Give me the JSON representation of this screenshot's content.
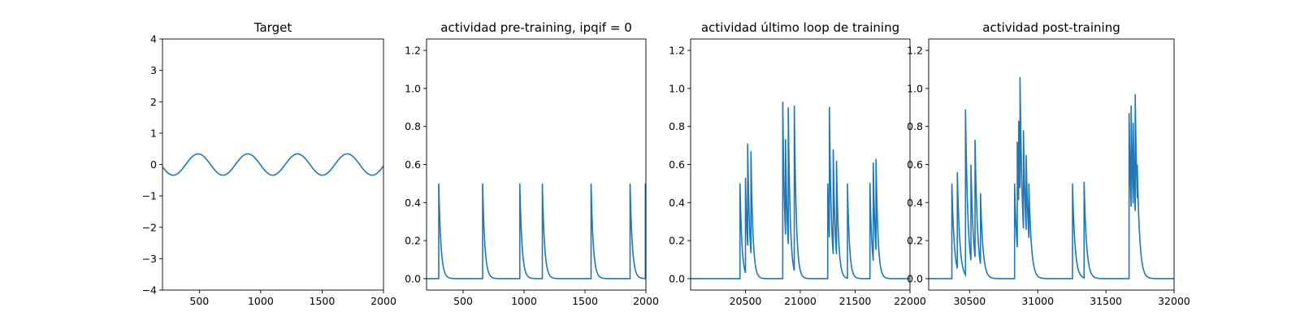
{
  "chart_data": [
    {
      "type": "line",
      "title": "Target",
      "xlim": [
        200,
        2000
      ],
      "ylim": [
        -4,
        4
      ],
      "xticks": [
        500,
        1000,
        1500,
        2000
      ],
      "yticks": [
        -4,
        -3,
        -2,
        -1,
        0,
        1,
        2,
        3,
        4
      ],
      "color": "#1f77b4",
      "series": [
        {
          "function": "sine",
          "amplitude": 0.34,
          "period": 405,
          "x_start": 200,
          "x_end": 2000,
          "x_at_first_peak": 490
        }
      ]
    },
    {
      "type": "line",
      "title": "actividad pre-training, ipqif = 0",
      "xlim": [
        200,
        2000
      ],
      "ylim": [
        -0.06,
        1.26
      ],
      "xticks": [
        500,
        1000,
        1500,
        2000
      ],
      "yticks": [
        0.0,
        0.2,
        0.4,
        0.6,
        0.8,
        1.0,
        1.2
      ],
      "color": "#1f77b4",
      "series": [
        {
          "x_start": 200,
          "x_end": 2000,
          "decay_time": 18,
          "spikes": [
            {
              "x": 300,
              "y": 0.5
            },
            {
              "x": 660,
              "y": 0.5
            },
            {
              "x": 965,
              "y": 0.5
            },
            {
              "x": 1150,
              "y": 0.5
            },
            {
              "x": 1550,
              "y": 0.5
            },
            {
              "x": 1870,
              "y": 0.5
            },
            {
              "x": 1995,
              "y": 0.5
            }
          ]
        }
      ]
    },
    {
      "type": "line",
      "title": "actividad último loop de training",
      "xlim": [
        20000,
        22000
      ],
      "ylim": [
        -0.06,
        1.26
      ],
      "xticks": [
        20500,
        21000,
        21500,
        22000
      ],
      "yticks": [
        0.0,
        0.2,
        0.4,
        0.6,
        0.8,
        1.0,
        1.2
      ],
      "color": "#1f77b4",
      "series": [
        {
          "x_start": 20000,
          "x_end": 22000,
          "decay_time": 18,
          "spikes": [
            {
              "x": 20450,
              "y": 0.5
            },
            {
              "x": 20500,
              "y": 0.53
            },
            {
              "x": 20520,
              "y": 0.71
            },
            {
              "x": 20550,
              "y": 0.67
            },
            {
              "x": 20840,
              "y": 0.93
            },
            {
              "x": 20865,
              "y": 0.73
            },
            {
              "x": 20890,
              "y": 0.9
            },
            {
              "x": 20945,
              "y": 0.91
            },
            {
              "x": 21250,
              "y": 0.5
            },
            {
              "x": 21265,
              "y": 0.9
            },
            {
              "x": 21300,
              "y": 0.68
            },
            {
              "x": 21330,
              "y": 0.62
            },
            {
              "x": 21430,
              "y": 0.5
            },
            {
              "x": 21635,
              "y": 0.5
            },
            {
              "x": 21665,
              "y": 0.61
            },
            {
              "x": 21690,
              "y": 0.63
            }
          ]
        }
      ]
    },
    {
      "type": "line",
      "title": "actividad post-training",
      "xlim": [
        30200,
        32000
      ],
      "ylim": [
        -0.06,
        1.26
      ],
      "xticks": [
        30500,
        31000,
        31500,
        32000
      ],
      "yticks": [
        0.0,
        0.2,
        0.4,
        0.6,
        0.8,
        1.0,
        1.2
      ],
      "color": "#1f77b4",
      "series": [
        {
          "x_start": 30200,
          "x_end": 32000,
          "decay_time": 18,
          "spikes": [
            {
              "x": 30370,
              "y": 0.5
            },
            {
              "x": 30410,
              "y": 0.56
            },
            {
              "x": 30470,
              "y": 0.89
            },
            {
              "x": 30510,
              "y": 0.6
            },
            {
              "x": 30540,
              "y": 0.73
            },
            {
              "x": 30580,
              "y": 0.45
            },
            {
              "x": 30830,
              "y": 0.5
            },
            {
              "x": 30850,
              "y": 0.72
            },
            {
              "x": 30860,
              "y": 0.83
            },
            {
              "x": 30870,
              "y": 1.06
            },
            {
              "x": 30895,
              "y": 0.78
            },
            {
              "x": 30915,
              "y": 0.65
            },
            {
              "x": 30935,
              "y": 0.5
            },
            {
              "x": 31255,
              "y": 0.5
            },
            {
              "x": 31340,
              "y": 0.51
            },
            {
              "x": 31670,
              "y": 0.87
            },
            {
              "x": 31685,
              "y": 0.91
            },
            {
              "x": 31700,
              "y": 0.82
            },
            {
              "x": 31715,
              "y": 0.97
            },
            {
              "x": 31730,
              "y": 0.6
            }
          ]
        }
      ]
    }
  ]
}
